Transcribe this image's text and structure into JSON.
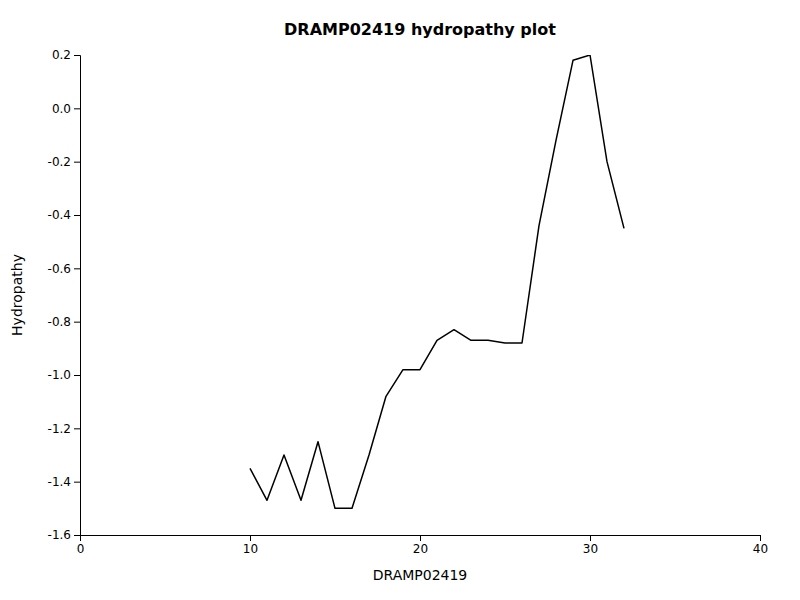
{
  "chart_data": {
    "type": "line",
    "title": "DRAMP02419 hydropathy plot",
    "xlabel": "DRAMP02419",
    "ylabel": "Hydropathy",
    "x": [
      10,
      11,
      12,
      13,
      14,
      15,
      16,
      17,
      18,
      19,
      20,
      21,
      22,
      23,
      24,
      25,
      26,
      27,
      28,
      29,
      30,
      31,
      32
    ],
    "values": [
      -1.35,
      -1.47,
      -1.3,
      -1.47,
      -1.25,
      -1.5,
      -1.5,
      -1.3,
      -1.08,
      -0.98,
      -0.98,
      -0.87,
      -0.83,
      -0.87,
      -0.87,
      -0.88,
      -0.88,
      -0.44,
      -0.12,
      0.18,
      0.2,
      -0.2,
      -0.45
    ],
    "color": "#000000",
    "xlim": [
      0,
      40
    ],
    "ylim": [
      -1.6,
      0.2
    ],
    "xticks": [
      0,
      10,
      20,
      30,
      40
    ],
    "yticks": [
      -1.6,
      -1.4,
      -1.2,
      {
        "value": -1.0,
        "label": "-1.0"
      },
      -0.8,
      -0.6,
      -0.4,
      -0.2,
      {
        "value": 0.0,
        "label": "0.0"
      },
      0.2
    ],
    "grid": false
  }
}
